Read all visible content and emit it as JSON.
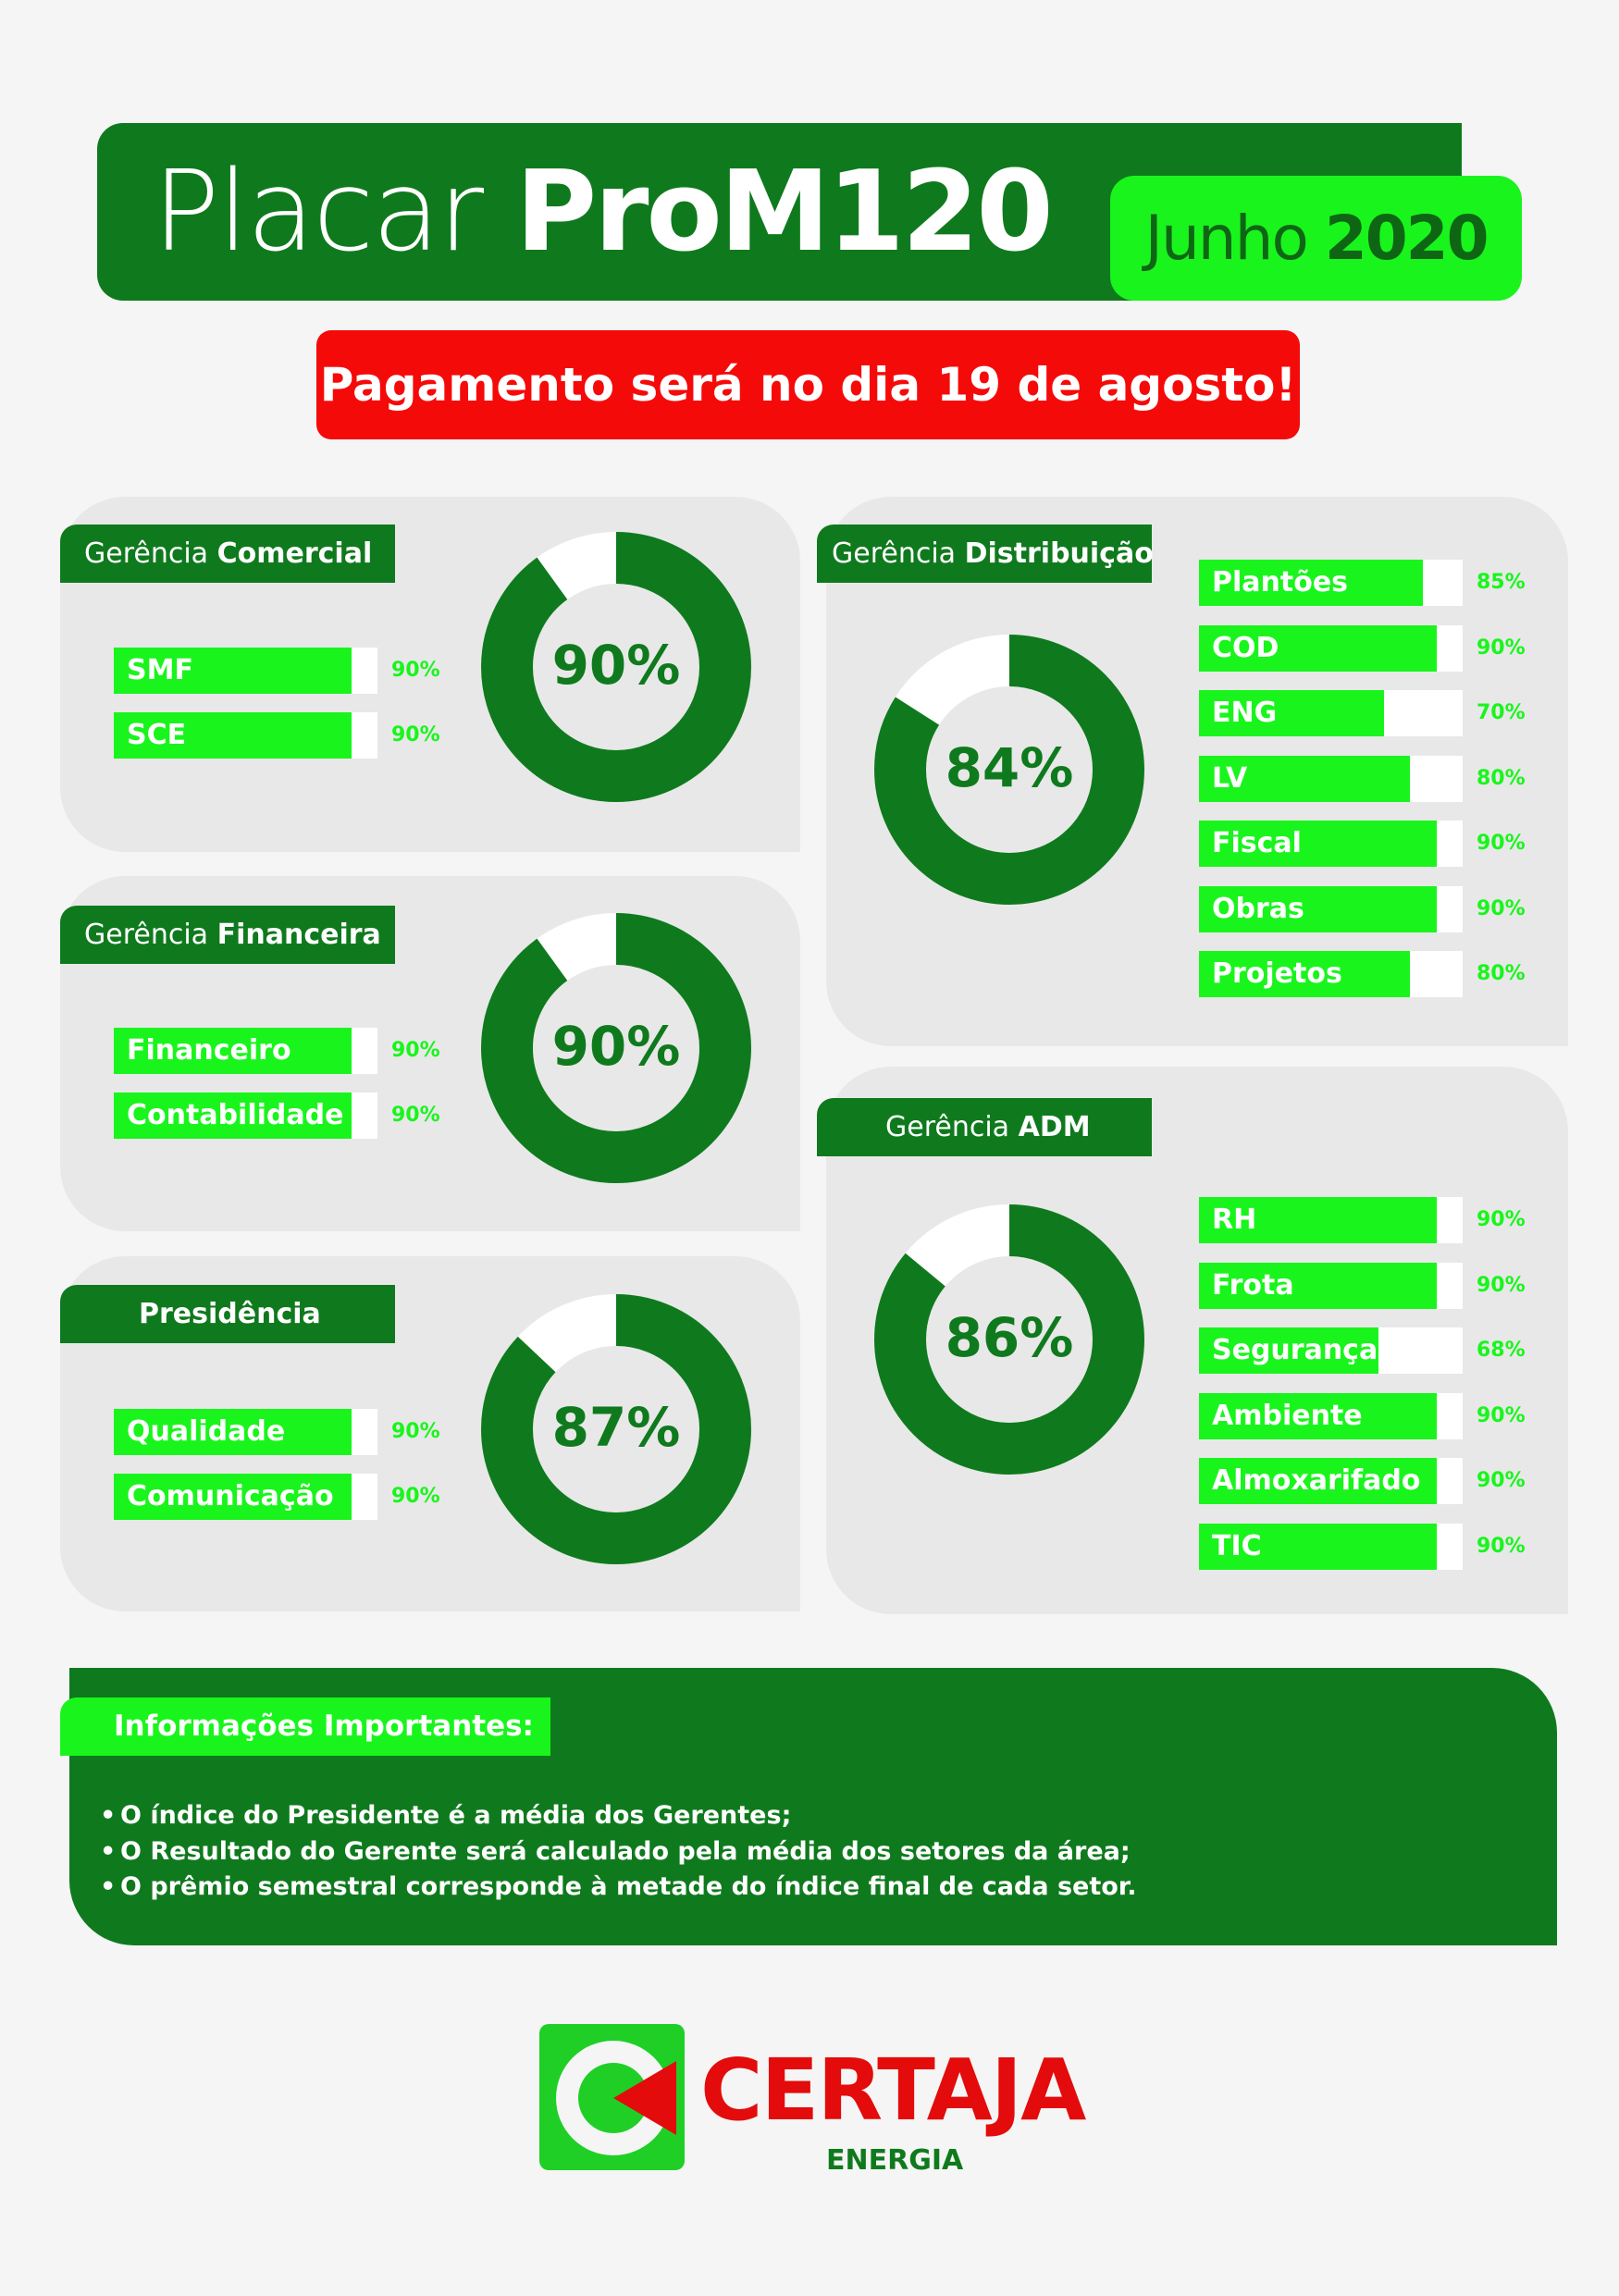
{
  "header": {
    "title_light": "Placar",
    "title_bold": "ProM120",
    "month": "Junho",
    "year": "2020",
    "payment_notice": "Pagamento será no dia 19 de agosto!"
  },
  "colors": {
    "dark_green": "#0f7a1d",
    "bright_green": "#19f51c",
    "red": "#f50a0a",
    "card_gray": "#e8e8e8"
  },
  "groups": {
    "comercial": {
      "label_light": "Gerência",
      "label_bold": "Comercial",
      "total": 90,
      "total_label": "90%",
      "items": [
        {
          "name": "SMF",
          "value": 90,
          "label": "90%"
        },
        {
          "name": "SCE",
          "value": 90,
          "label": "90%"
        }
      ]
    },
    "financeira": {
      "label_light": "Gerência",
      "label_bold": "Financeira",
      "total": 90,
      "total_label": "90%",
      "items": [
        {
          "name": "Financeiro",
          "value": 90,
          "label": "90%"
        },
        {
          "name": "Contabilidade",
          "value": 90,
          "label": "90%"
        }
      ]
    },
    "presidencia": {
      "label_bold": "Presidência",
      "total": 87,
      "total_label": "87%",
      "items": [
        {
          "name": "Qualidade",
          "value": 90,
          "label": "90%"
        },
        {
          "name": "Comunicação",
          "value": 90,
          "label": "90%"
        }
      ]
    },
    "distribuicao": {
      "label_light": "Gerência",
      "label_bold": "Distribuição",
      "total": 84,
      "total_label": "84%",
      "items": [
        {
          "name": "Plantões",
          "value": 85,
          "label": "85%"
        },
        {
          "name": "COD",
          "value": 90,
          "label": "90%"
        },
        {
          "name": "ENG",
          "value": 70,
          "label": "70%"
        },
        {
          "name": "LV",
          "value": 80,
          "label": "80%"
        },
        {
          "name": "Fiscal",
          "value": 90,
          "label": "90%"
        },
        {
          "name": "Obras",
          "value": 90,
          "label": "90%"
        },
        {
          "name": "Projetos",
          "value": 80,
          "label": "80%"
        }
      ]
    },
    "adm": {
      "label_light": "Gerência",
      "label_bold": "ADM",
      "total": 86,
      "total_label": "86%",
      "items": [
        {
          "name": "RH",
          "value": 90,
          "label": "90%"
        },
        {
          "name": "Frota",
          "value": 90,
          "label": "90%"
        },
        {
          "name": "Segurança",
          "value": 68,
          "label": "68%"
        },
        {
          "name": "Ambiente",
          "value": 90,
          "label": "90%"
        },
        {
          "name": "Almoxarifado",
          "value": 90,
          "label": "90%"
        },
        {
          "name": "TIC",
          "value": 90,
          "label": "90%"
        }
      ]
    }
  },
  "info": {
    "title": "Informações Importantes:",
    "lines": [
      "O índice do Presidente é a média dos Gerentes;",
      "O Resultado do Gerente será calculado pela média dos setores da área;",
      "O prêmio semestral corresponde à metade do índice final de cada setor."
    ]
  },
  "logo": {
    "name": "CERTAJA",
    "sub": "ENERGIA"
  }
}
